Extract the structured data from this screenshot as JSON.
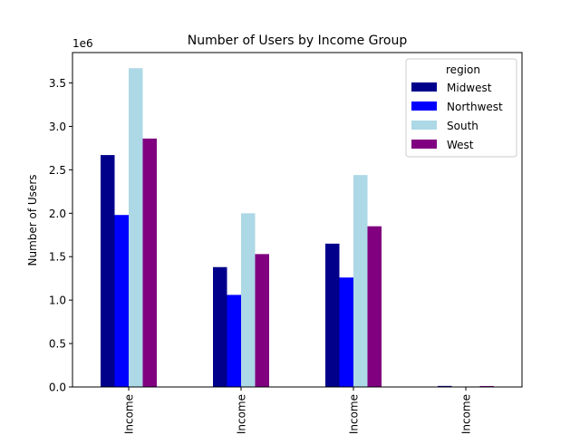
{
  "chart_data": {
    "type": "bar",
    "title": "Number of Users by Income Group",
    "xlabel": "",
    "ylabel": "Number of Users",
    "offset_label": "1e6",
    "scale": 1000000,
    "ylim": [
      0,
      3850000
    ],
    "yticks": [
      0,
      500000,
      1000000,
      1500000,
      2000000,
      2500000,
      3000000,
      3500000
    ],
    "ytick_labels": [
      "0.0",
      "0.5",
      "1.0",
      "1.5",
      "2.0",
      "2.5",
      "3.0",
      "3.5"
    ],
    "categories": [
      "Income",
      "Income",
      "Income",
      "Income"
    ],
    "legend_title": "region",
    "legend_position": "top-right",
    "grid": false,
    "series": [
      {
        "name": "Midwest",
        "color": "#00008b",
        "values": [
          2670000,
          1380000,
          1650000,
          12000
        ]
      },
      {
        "name": "Northwest",
        "color": "#0000ff",
        "values": [
          1980000,
          1060000,
          1260000,
          5000
        ]
      },
      {
        "name": "South",
        "color": "#add8e6",
        "values": [
          3670000,
          2000000,
          2440000,
          6000
        ]
      },
      {
        "name": "West",
        "color": "#800080",
        "values": [
          2860000,
          1530000,
          1850000,
          11000
        ]
      }
    ]
  }
}
